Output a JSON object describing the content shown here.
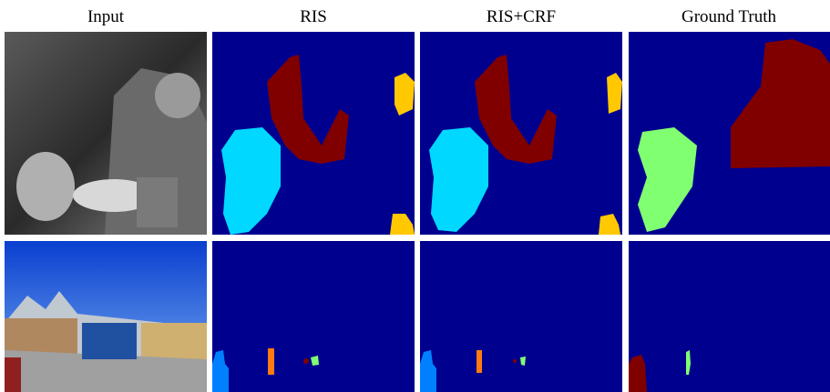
{
  "figure": {
    "columns": [
      "Input",
      "RIS",
      "RIS+CRF",
      "Ground Truth"
    ]
  }
}
